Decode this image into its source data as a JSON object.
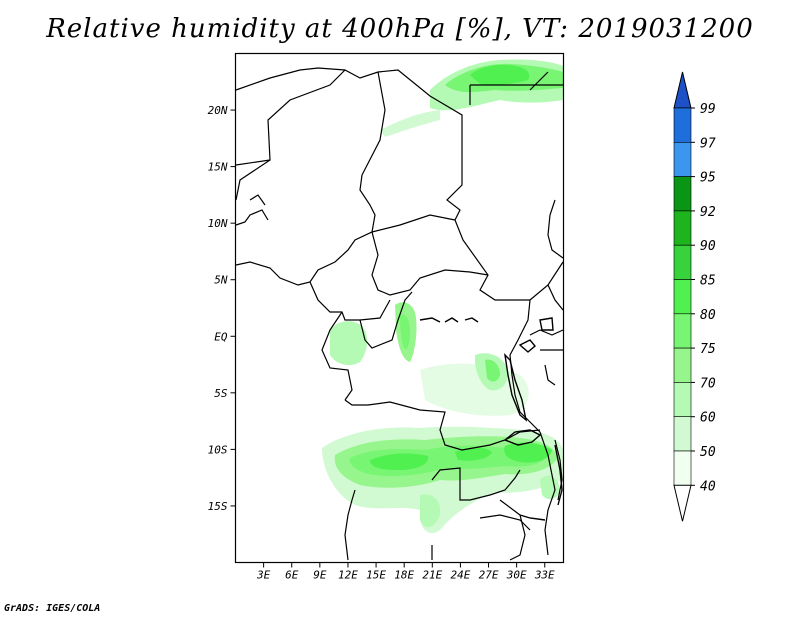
{
  "title": "Relative humidity at 400hPa [%], VT: 2019031200",
  "credit": "GrADS: IGES/COLA",
  "map": {
    "region": "Central Africa",
    "lon_range": [
      0,
      35
    ],
    "lat_range": [
      -20,
      25
    ],
    "x_ticks": [
      "3E",
      "6E",
      "9E",
      "12E",
      "15E",
      "18E",
      "21E",
      "24E",
      "27E",
      "30E",
      "33E"
    ],
    "x_tick_values": [
      3,
      6,
      9,
      12,
      15,
      18,
      21,
      24,
      27,
      30,
      33
    ],
    "y_ticks": [
      "20N",
      "15N",
      "10N",
      "5N",
      "EQ",
      "5S",
      "10S",
      "15S"
    ],
    "y_tick_values": [
      20,
      15,
      10,
      5,
      0,
      -5,
      -10,
      -15
    ]
  },
  "colorbar": {
    "labels": [
      "99",
      "97",
      "95",
      "92",
      "90",
      "85",
      "80",
      "75",
      "70",
      "60",
      "50",
      "40"
    ],
    "colors": [
      "#1e50c8",
      "#1e6edc",
      "#3c96f0",
      "#0a9614",
      "#1eb41e",
      "#37d23c",
      "#50f050",
      "#78f573",
      "#96f58c",
      "#b4fab4",
      "#d2fad2",
      "#f0fff0"
    ]
  }
}
